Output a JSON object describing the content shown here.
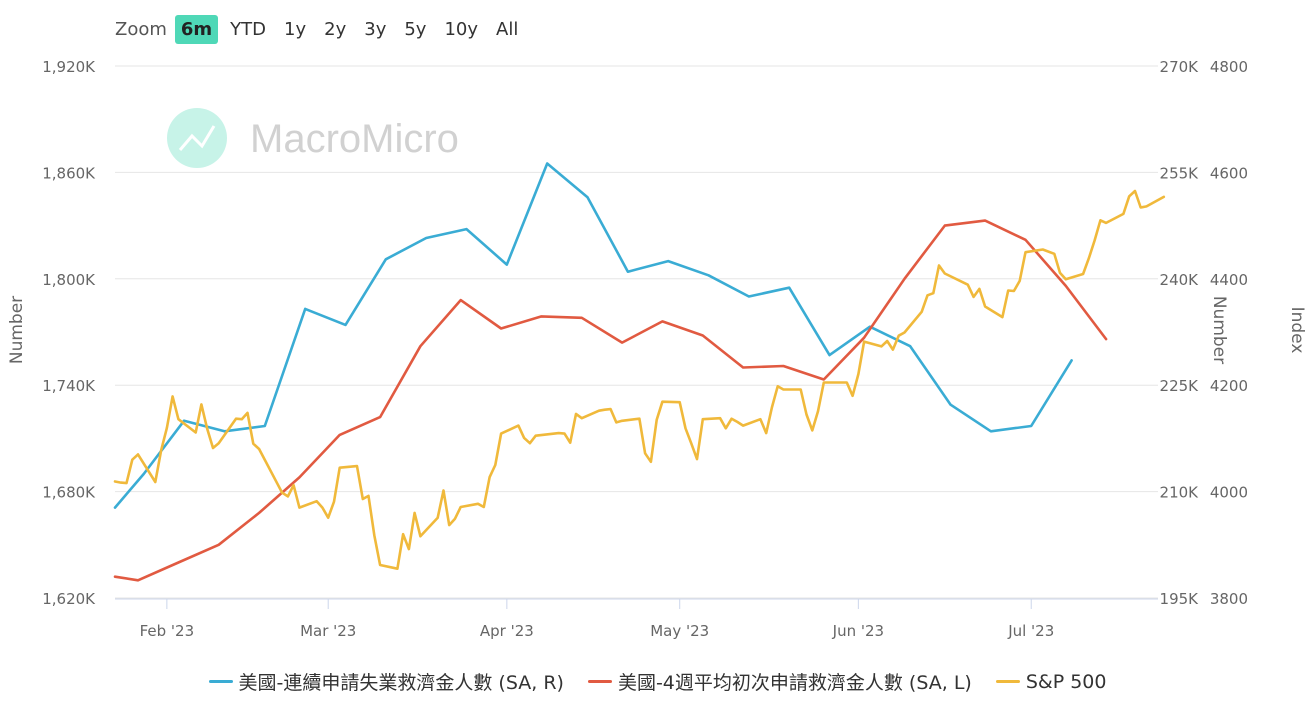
{
  "zoom": {
    "label": "Zoom",
    "buttons": [
      "6m",
      "YTD",
      "1y",
      "2y",
      "3y",
      "5y",
      "10y",
      "All"
    ],
    "active": "6m"
  },
  "watermark": "MacroMicro",
  "colors": {
    "continued": "#3aacd4",
    "initial": "#e15a41",
    "sp500": "#f0b93b",
    "grid": "#e6e6e6",
    "axis_text": "#666666",
    "watermark_icon": "#4fd8b7"
  },
  "chart_data": {
    "type": "line",
    "x_axis": {
      "type": "date",
      "range": [
        "2023-01-23",
        "2023-07-23"
      ],
      "tick_labels": [
        "Feb '23",
        "Mar '23",
        "Apr '23",
        "May '23",
        "Jun '23",
        "Jul '23"
      ],
      "tick_dates": [
        "2023-02-01",
        "2023-03-01",
        "2023-04-01",
        "2023-05-01",
        "2023-06-01",
        "2023-07-01"
      ]
    },
    "y_axes": [
      {
        "id": "left",
        "title": "Number",
        "range": [
          1620000,
          1920000
        ],
        "tick_labels": [
          "1,620K",
          "1,680K",
          "1,740K",
          "1,800K",
          "1,860K",
          "1,920K"
        ]
      },
      {
        "id": "right1",
        "title": "Number",
        "range": [
          195000,
          270000
        ],
        "tick_labels": [
          "195K",
          "210K",
          "225K",
          "240K",
          "255K",
          "270K"
        ]
      },
      {
        "id": "right2",
        "title": "Index",
        "range": [
          3800,
          4800
        ],
        "tick_labels": [
          "3800",
          "4000",
          "4200",
          "4400",
          "4600",
          "4800"
        ]
      }
    ],
    "grid": true,
    "legend": "bottom",
    "series": [
      {
        "name": "美國-連續申請失業救濟金人數 (SA, R)",
        "axis": "left",
        "color": "#3aacd4",
        "points": [
          [
            "2023-01-23",
            1671000
          ],
          [
            "2023-01-28",
            1690000
          ],
          [
            "2023-02-04",
            1720000
          ],
          [
            "2023-02-11",
            1714000
          ],
          [
            "2023-02-18",
            1717000
          ],
          [
            "2023-02-25",
            1783000
          ],
          [
            "2023-03-04",
            1774000
          ],
          [
            "2023-03-11",
            1811000
          ],
          [
            "2023-03-18",
            1823000
          ],
          [
            "2023-03-25",
            1828000
          ],
          [
            "2023-04-01",
            1808000
          ],
          [
            "2023-04-08",
            1865000
          ],
          [
            "2023-04-15",
            1846000
          ],
          [
            "2023-04-22",
            1804000
          ],
          [
            "2023-04-29",
            1810000
          ],
          [
            "2023-05-06",
            1802000
          ],
          [
            "2023-05-13",
            1790000
          ],
          [
            "2023-05-20",
            1795000
          ],
          [
            "2023-05-27",
            1757000
          ],
          [
            "2023-06-03",
            1773000
          ],
          [
            "2023-06-10",
            1762000
          ],
          [
            "2023-06-17",
            1729000
          ],
          [
            "2023-06-24",
            1714000
          ],
          [
            "2023-07-01",
            1717000
          ],
          [
            "2023-07-08",
            1754000
          ]
        ]
      },
      {
        "name": "美國-4週平均初次申請救濟金人數 (SA, L)",
        "axis": "right1",
        "color": "#e15a41",
        "points": [
          [
            "2023-01-23",
            198000
          ],
          [
            "2023-01-27",
            197500
          ],
          [
            "2023-02-03",
            200000
          ],
          [
            "2023-02-10",
            202500
          ],
          [
            "2023-02-17",
            207000
          ],
          [
            "2023-02-24",
            212000
          ],
          [
            "2023-03-03",
            218000
          ],
          [
            "2023-03-10",
            220500
          ],
          [
            "2023-03-17",
            230500
          ],
          [
            "2023-03-24",
            237000
          ],
          [
            "2023-03-31",
            233000
          ],
          [
            "2023-04-07",
            234700
          ],
          [
            "2023-04-14",
            234500
          ],
          [
            "2023-04-21",
            231000
          ],
          [
            "2023-04-28",
            234000
          ],
          [
            "2023-05-05",
            232000
          ],
          [
            "2023-05-12",
            227500
          ],
          [
            "2023-05-19",
            227700
          ],
          [
            "2023-05-26",
            225800
          ],
          [
            "2023-06-02",
            231700
          ],
          [
            "2023-06-09",
            240000
          ],
          [
            "2023-06-16",
            247500
          ],
          [
            "2023-06-23",
            248200
          ],
          [
            "2023-06-30",
            245500
          ],
          [
            "2023-07-07",
            239000
          ],
          [
            "2023-07-14",
            231500
          ]
        ]
      },
      {
        "name": "S&P 500",
        "axis": "right2",
        "color": "#f0b93b",
        "points": [
          [
            "2023-01-23",
            4019
          ],
          [
            "2023-01-24",
            4017
          ],
          [
            "2023-01-25",
            4016
          ],
          [
            "2023-01-26",
            4060
          ],
          [
            "2023-01-27",
            4070
          ],
          [
            "2023-01-30",
            4018
          ],
          [
            "2023-01-31",
            4077
          ],
          [
            "2023-02-01",
            4120
          ],
          [
            "2023-02-02",
            4179
          ],
          [
            "2023-02-03",
            4136
          ],
          [
            "2023-02-06",
            4111
          ],
          [
            "2023-02-07",
            4164
          ],
          [
            "2023-02-08",
            4118
          ],
          [
            "2023-02-09",
            4082
          ],
          [
            "2023-02-10",
            4091
          ],
          [
            "2023-02-13",
            4137
          ],
          [
            "2023-02-14",
            4136
          ],
          [
            "2023-02-15",
            4148
          ],
          [
            "2023-02-16",
            4090
          ],
          [
            "2023-02-17",
            4080
          ],
          [
            "2023-02-21",
            3998
          ],
          [
            "2023-02-22",
            3991
          ],
          [
            "2023-02-23",
            4012
          ],
          [
            "2023-02-24",
            3970
          ],
          [
            "2023-02-27",
            3982
          ],
          [
            "2023-02-28",
            3970
          ],
          [
            "2023-03-01",
            3951
          ],
          [
            "2023-03-02",
            3981
          ],
          [
            "2023-03-03",
            4045
          ],
          [
            "2023-03-06",
            4048
          ],
          [
            "2023-03-07",
            3986
          ],
          [
            "2023-03-08",
            3992
          ],
          [
            "2023-03-09",
            3918
          ],
          [
            "2023-03-10",
            3862
          ],
          [
            "2023-03-13",
            3855
          ],
          [
            "2023-03-14",
            3920
          ],
          [
            "2023-03-15",
            3892
          ],
          [
            "2023-03-16",
            3960
          ],
          [
            "2023-03-17",
            3916
          ],
          [
            "2023-03-20",
            3951
          ],
          [
            "2023-03-21",
            4002
          ],
          [
            "2023-03-22",
            3937
          ],
          [
            "2023-03-23",
            3949
          ],
          [
            "2023-03-24",
            3971
          ],
          [
            "2023-03-27",
            3977
          ],
          [
            "2023-03-28",
            3971
          ],
          [
            "2023-03-29",
            4027
          ],
          [
            "2023-03-30",
            4050
          ],
          [
            "2023-03-31",
            4109
          ],
          [
            "2023-04-03",
            4124
          ],
          [
            "2023-04-04",
            4101
          ],
          [
            "2023-04-05",
            4091
          ],
          [
            "2023-04-06",
            4105
          ],
          [
            "2023-04-10",
            4110
          ],
          [
            "2023-04-11",
            4109
          ],
          [
            "2023-04-12",
            4092
          ],
          [
            "2023-04-13",
            4146
          ],
          [
            "2023-04-14",
            4138
          ],
          [
            "2023-04-17",
            4152
          ],
          [
            "2023-04-18",
            4154
          ],
          [
            "2023-04-19",
            4155
          ],
          [
            "2023-04-20",
            4130
          ],
          [
            "2023-04-21",
            4133
          ],
          [
            "2023-04-24",
            4137
          ],
          [
            "2023-04-25",
            4072
          ],
          [
            "2023-04-26",
            4056
          ],
          [
            "2023-04-27",
            4135
          ],
          [
            "2023-04-28",
            4169
          ],
          [
            "2023-05-01",
            4168
          ],
          [
            "2023-05-02",
            4119
          ],
          [
            "2023-05-03",
            4091
          ],
          [
            "2023-05-04",
            4061
          ],
          [
            "2023-05-05",
            4136
          ],
          [
            "2023-05-08",
            4138
          ],
          [
            "2023-05-09",
            4119
          ],
          [
            "2023-05-10",
            4137
          ],
          [
            "2023-05-11",
            4131
          ],
          [
            "2023-05-12",
            4124
          ],
          [
            "2023-05-15",
            4136
          ],
          [
            "2023-05-16",
            4110
          ],
          [
            "2023-05-17",
            4158
          ],
          [
            "2023-05-18",
            4198
          ],
          [
            "2023-05-19",
            4192
          ],
          [
            "2023-05-22",
            4192
          ],
          [
            "2023-05-23",
            4145
          ],
          [
            "2023-05-24",
            4115
          ],
          [
            "2023-05-25",
            4151
          ],
          [
            "2023-05-26",
            4205
          ],
          [
            "2023-05-30",
            4205
          ],
          [
            "2023-05-31",
            4180
          ],
          [
            "2023-06-01",
            4221
          ],
          [
            "2023-06-02",
            4282
          ],
          [
            "2023-06-05",
            4273
          ],
          [
            "2023-06-06",
            4283
          ],
          [
            "2023-06-07",
            4267
          ],
          [
            "2023-06-08",
            4293
          ],
          [
            "2023-06-09",
            4299
          ],
          [
            "2023-06-12",
            4338
          ],
          [
            "2023-06-13",
            4369
          ],
          [
            "2023-06-14",
            4373
          ],
          [
            "2023-06-15",
            4425
          ],
          [
            "2023-06-16",
            4410
          ],
          [
            "2023-06-20",
            4389
          ],
          [
            "2023-06-21",
            4366
          ],
          [
            "2023-06-22",
            4381
          ],
          [
            "2023-06-23",
            4348
          ],
          [
            "2023-06-26",
            4328
          ],
          [
            "2023-06-27",
            4378
          ],
          [
            "2023-06-28",
            4377
          ],
          [
            "2023-06-29",
            4396
          ],
          [
            "2023-06-30",
            4450
          ],
          [
            "2023-07-03",
            4455
          ],
          [
            "2023-07-05",
            4447
          ],
          [
            "2023-07-06",
            4411
          ],
          [
            "2023-07-07",
            4399
          ],
          [
            "2023-07-10",
            4409
          ],
          [
            "2023-07-11",
            4439
          ],
          [
            "2023-07-12",
            4472
          ],
          [
            "2023-07-13",
            4510
          ],
          [
            "2023-07-14",
            4505
          ],
          [
            "2023-07-17",
            4522
          ],
          [
            "2023-07-18",
            4555
          ],
          [
            "2023-07-19",
            4565
          ],
          [
            "2023-07-20",
            4534
          ],
          [
            "2023-07-21",
            4536
          ],
          [
            "2023-07-24",
            4554
          ]
        ]
      }
    ]
  }
}
